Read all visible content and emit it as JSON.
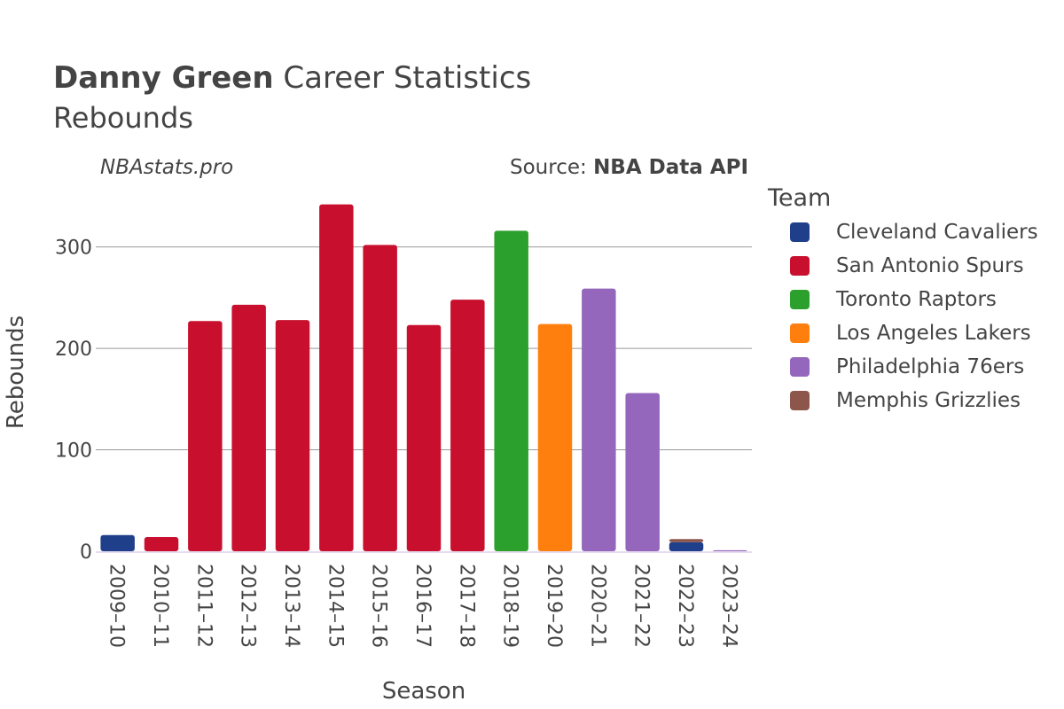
{
  "header": {
    "title_bold": "Danny Green",
    "title_rest": " Career Statistics",
    "subtitle": "Rebounds",
    "watermark": "NBAstats.pro",
    "source_prefix": "Source: ",
    "source_name": "NBA Data API"
  },
  "legend": {
    "title": "Team",
    "items": [
      {
        "label": "Cleveland Cavaliers",
        "color": "#1f3f8a"
      },
      {
        "label": "San Antonio Spurs",
        "color": "#c8102e"
      },
      {
        "label": "Toronto Raptors",
        "color": "#2ca02c"
      },
      {
        "label": "Los Angeles Lakers",
        "color": "#ff7f0e"
      },
      {
        "label": "Philadelphia 76ers",
        "color": "#9467bd"
      },
      {
        "label": "Memphis Grizzlies",
        "color": "#8c564b"
      }
    ]
  },
  "chart_data": {
    "type": "bar",
    "stacked": true,
    "title": "Danny Green Career Statistics",
    "subtitle": "Rebounds",
    "xlabel": "Season",
    "ylabel": "Rebounds",
    "ylim": [
      0,
      360
    ],
    "yticks": [
      0,
      100,
      200,
      300
    ],
    "grid": true,
    "legend_position": "right",
    "categories": [
      "2009–10",
      "2010–11",
      "2011–12",
      "2012–13",
      "2013–14",
      "2014–15",
      "2015–16",
      "2016–17",
      "2017–18",
      "2018–19",
      "2019–20",
      "2020–21",
      "2021–22",
      "2022–23",
      "2023–24"
    ],
    "series": [
      {
        "name": "Cleveland Cavaliers",
        "color": "#1f3f8a",
        "values": [
          16,
          0,
          0,
          0,
          0,
          0,
          0,
          0,
          0,
          0,
          0,
          0,
          0,
          9,
          0
        ]
      },
      {
        "name": "San Antonio Spurs",
        "color": "#c8102e",
        "values": [
          0,
          14,
          227,
          243,
          228,
          342,
          302,
          223,
          248,
          0,
          0,
          0,
          0,
          0,
          0
        ]
      },
      {
        "name": "Toronto Raptors",
        "color": "#2ca02c",
        "values": [
          0,
          0,
          0,
          0,
          0,
          0,
          0,
          0,
          0,
          316,
          0,
          0,
          0,
          0,
          0
        ]
      },
      {
        "name": "Los Angeles Lakers",
        "color": "#ff7f0e",
        "values": [
          0,
          0,
          0,
          0,
          0,
          0,
          0,
          0,
          0,
          0,
          224,
          0,
          0,
          0,
          0
        ]
      },
      {
        "name": "Philadelphia 76ers",
        "color": "#9467bd",
        "values": [
          0,
          0,
          0,
          0,
          0,
          0,
          0,
          0,
          0,
          0,
          0,
          259,
          156,
          0,
          1
        ]
      },
      {
        "name": "Memphis Grizzlies",
        "color": "#8c564b",
        "values": [
          0,
          0,
          0,
          0,
          0,
          0,
          0,
          0,
          0,
          0,
          0,
          0,
          0,
          3,
          0
        ]
      }
    ]
  }
}
